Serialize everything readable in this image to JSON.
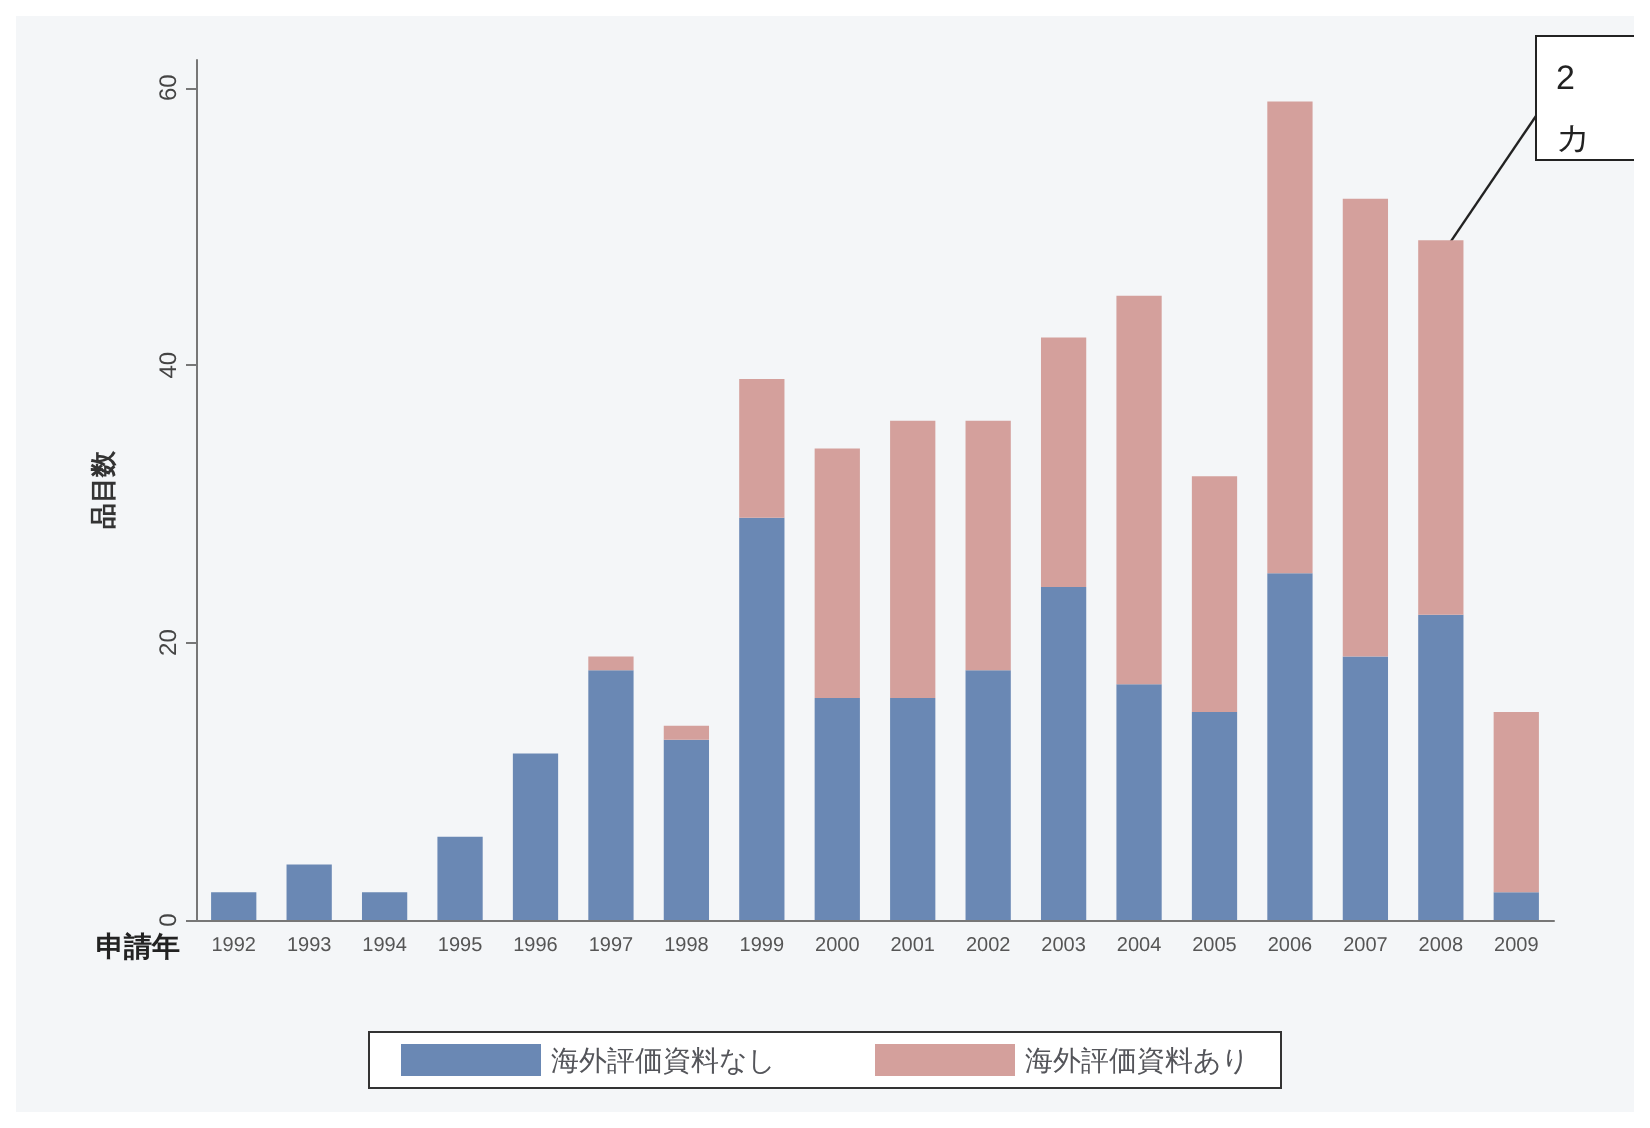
{
  "chart_data": {
    "type": "bar",
    "stacked": true,
    "ylabel": "品目数",
    "xlabel": "申請年",
    "categories": [
      "1992",
      "1993",
      "1994",
      "1995",
      "1996",
      "1997",
      "1998",
      "1999",
      "2000",
      "2001",
      "2002",
      "2003",
      "2004",
      "2005",
      "2006",
      "2007",
      "2008",
      "2009"
    ],
    "series": [
      {
        "name": "海外評価資料なし",
        "color": "#6a88b4",
        "values": [
          2,
          4,
          2,
          6,
          12,
          18,
          13,
          29,
          16,
          16,
          18,
          24,
          17,
          15,
          25,
          19,
          22,
          2
        ]
      },
      {
        "name": "海外評価資料あり",
        "color": "#d4a09c",
        "values": [
          0,
          0,
          0,
          0,
          0,
          1,
          1,
          10,
          18,
          20,
          18,
          18,
          28,
          17,
          34,
          33,
          27,
          13
        ]
      }
    ],
    "ylim": [
      0,
      62
    ],
    "yticks": [
      0,
      20,
      40,
      60
    ],
    "grid": false,
    "legend": "bottom",
    "annotations": [
      {
        "text": "2\nカ",
        "x": "2008",
        "y": 49
      }
    ]
  }
}
